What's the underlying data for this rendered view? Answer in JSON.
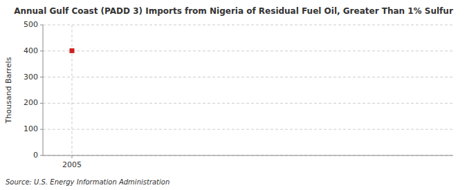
{
  "chart_data": {
    "type": "scatter",
    "title": "Annual Gulf Coast (PADD 3) Imports from Nigeria of Residual Fuel Oil, Greater Than 1% Sulfur",
    "y_label": "Thousand Barrels",
    "annotations": [
      "Source: U.S. Energy Information Administration"
    ],
    "x": [
      2005
    ],
    "values": [
      401
    ],
    "color": "#cc2222",
    "marker": "square",
    "xlim": [
      2004.2,
      2015.5
    ],
    "xticks": [
      2005
    ],
    "ylim": [
      0,
      500
    ],
    "yticks": [
      0,
      100,
      200,
      300,
      400,
      500
    ],
    "grid": true
  }
}
